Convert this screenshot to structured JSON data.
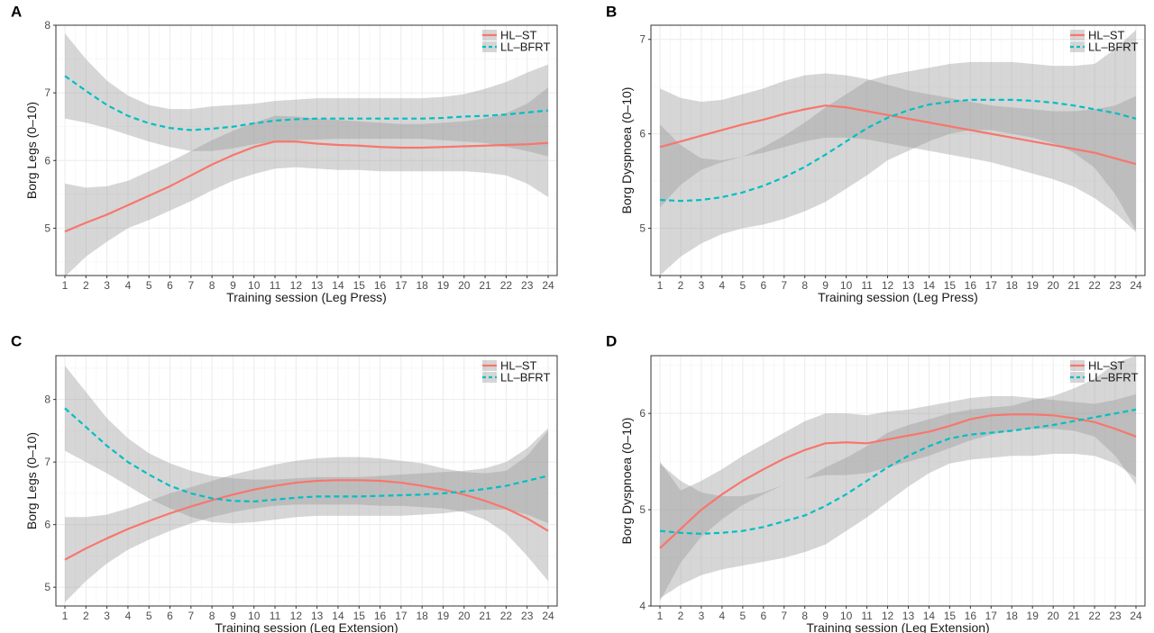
{
  "colors": {
    "hl_st": "#F8766D",
    "ll_bfrt": "#00BFC4",
    "band": "#999999",
    "grid": "#ebebeb",
    "frame": "#333333"
  },
  "chart_data": [
    {
      "panel": "A",
      "type": "line",
      "xlabel": "Training session (Leg Press)",
      "ylabel": "Borg Legs (0–10)",
      "xlim": [
        1,
        24
      ],
      "ylim": [
        4.3,
        8.0
      ],
      "yticks": [
        5,
        6,
        7,
        8
      ],
      "x": [
        1,
        2,
        3,
        4,
        5,
        6,
        7,
        8,
        9,
        10,
        11,
        12,
        13,
        14,
        15,
        16,
        17,
        18,
        19,
        20,
        21,
        22,
        23,
        24
      ],
      "grid": true,
      "legend_position": "top-right",
      "series": [
        {
          "name": "HL–ST",
          "style": "solid",
          "values": [
            4.95,
            5.08,
            5.2,
            5.34,
            5.48,
            5.62,
            5.78,
            5.94,
            6.08,
            6.2,
            6.28,
            6.28,
            6.25,
            6.23,
            6.22,
            6.2,
            6.19,
            6.19,
            6.2,
            6.21,
            6.22,
            6.23,
            6.24,
            6.26
          ],
          "lower": [
            4.28,
            4.58,
            4.8,
            5.0,
            5.12,
            5.26,
            5.4,
            5.56,
            5.7,
            5.8,
            5.88,
            5.9,
            5.88,
            5.86,
            5.86,
            5.84,
            5.84,
            5.84,
            5.84,
            5.84,
            5.82,
            5.78,
            5.66,
            5.46
          ],
          "upper": [
            5.66,
            5.6,
            5.62,
            5.7,
            5.84,
            5.98,
            6.14,
            6.3,
            6.44,
            6.56,
            6.66,
            6.65,
            6.62,
            6.6,
            6.58,
            6.56,
            6.54,
            6.54,
            6.56,
            6.58,
            6.62,
            6.7,
            6.84,
            7.08
          ]
        },
        {
          "name": "LL–BFRT",
          "style": "dashed",
          "values": [
            7.25,
            7.03,
            6.82,
            6.66,
            6.55,
            6.48,
            6.45,
            6.47,
            6.5,
            6.55,
            6.59,
            6.61,
            6.62,
            6.62,
            6.62,
            6.62,
            6.62,
            6.62,
            6.63,
            6.65,
            6.66,
            6.68,
            6.71,
            6.74
          ],
          "lower": [
            6.62,
            6.56,
            6.48,
            6.38,
            6.28,
            6.2,
            6.14,
            6.14,
            6.18,
            6.24,
            6.28,
            6.3,
            6.31,
            6.32,
            6.32,
            6.32,
            6.32,
            6.32,
            6.3,
            6.28,
            6.26,
            6.2,
            6.14,
            6.06
          ],
          "upper": [
            7.88,
            7.5,
            7.18,
            6.96,
            6.82,
            6.76,
            6.76,
            6.8,
            6.82,
            6.84,
            6.88,
            6.9,
            6.92,
            6.92,
            6.92,
            6.92,
            6.92,
            6.92,
            6.94,
            6.98,
            7.06,
            7.16,
            7.3,
            7.42
          ]
        }
      ]
    },
    {
      "panel": "B",
      "type": "line",
      "xlabel": "Training session (Leg Press)",
      "ylabel": "Borg Dyspnoea (0–10)",
      "xlim": [
        1,
        24
      ],
      "ylim": [
        4.5,
        7.15
      ],
      "yticks": [
        5,
        6,
        7
      ],
      "x": [
        1,
        2,
        3,
        4,
        5,
        6,
        7,
        8,
        9,
        10,
        11,
        12,
        13,
        14,
        15,
        16,
        17,
        18,
        19,
        20,
        21,
        22,
        23,
        24
      ],
      "grid": true,
      "legend_position": "top-right",
      "series": [
        {
          "name": "HL–ST",
          "style": "solid",
          "values": [
            5.86,
            5.92,
            5.98,
            6.04,
            6.1,
            6.15,
            6.21,
            6.26,
            6.3,
            6.28,
            6.24,
            6.2,
            6.16,
            6.12,
            6.08,
            6.04,
            6.0,
            5.96,
            5.92,
            5.88,
            5.84,
            5.8,
            5.74,
            5.68
          ],
          "lower": [
            5.22,
            5.46,
            5.62,
            5.7,
            5.76,
            5.8,
            5.86,
            5.92,
            5.96,
            5.96,
            5.94,
            5.9,
            5.86,
            5.82,
            5.78,
            5.74,
            5.7,
            5.64,
            5.58,
            5.52,
            5.44,
            5.32,
            5.16,
            4.96
          ],
          "upper": [
            6.48,
            6.38,
            6.34,
            6.36,
            6.42,
            6.48,
            6.56,
            6.62,
            6.64,
            6.62,
            6.58,
            6.52,
            6.46,
            6.42,
            6.38,
            6.34,
            6.3,
            6.28,
            6.26,
            6.24,
            6.24,
            6.26,
            6.3,
            6.4
          ]
        },
        {
          "name": "LL–BFRT",
          "style": "dashed",
          "values": [
            5.3,
            5.29,
            5.3,
            5.33,
            5.38,
            5.45,
            5.54,
            5.65,
            5.78,
            5.92,
            6.06,
            6.17,
            6.25,
            6.31,
            6.34,
            6.36,
            6.36,
            6.36,
            6.35,
            6.33,
            6.3,
            6.26,
            6.22,
            6.16
          ],
          "lower": [
            4.5,
            4.7,
            4.84,
            4.94,
            5.0,
            5.04,
            5.1,
            5.18,
            5.28,
            5.42,
            5.56,
            5.72,
            5.82,
            5.92,
            6.0,
            6.04,
            6.04,
            6.0,
            5.96,
            5.9,
            5.8,
            5.64,
            5.36,
            4.98
          ],
          "upper": [
            6.1,
            5.88,
            5.74,
            5.72,
            5.76,
            5.86,
            5.98,
            6.12,
            6.28,
            6.42,
            6.56,
            6.62,
            6.66,
            6.7,
            6.74,
            6.76,
            6.76,
            6.76,
            6.74,
            6.72,
            6.72,
            6.74,
            6.9,
            7.1
          ]
        }
      ]
    },
    {
      "panel": "C",
      "type": "line",
      "xlabel": "Training session (Leg Extension)",
      "ylabel": "Borg Legs (0–10)",
      "xlim": [
        1,
        24
      ],
      "ylim": [
        4.7,
        8.7
      ],
      "yticks": [
        5,
        6,
        7,
        8
      ],
      "x": [
        1,
        2,
        3,
        4,
        5,
        6,
        7,
        8,
        9,
        10,
        11,
        12,
        13,
        14,
        15,
        16,
        17,
        18,
        19,
        20,
        21,
        22,
        23,
        24
      ],
      "grid": true,
      "legend_position": "top-right",
      "series": [
        {
          "name": "HL–ST",
          "style": "solid",
          "values": [
            5.44,
            5.62,
            5.78,
            5.93,
            6.06,
            6.18,
            6.29,
            6.39,
            6.48,
            6.56,
            6.62,
            6.67,
            6.7,
            6.71,
            6.71,
            6.7,
            6.67,
            6.62,
            6.56,
            6.48,
            6.38,
            6.26,
            6.1,
            5.9
          ],
          "lower": [
            4.76,
            5.1,
            5.38,
            5.6,
            5.76,
            5.9,
            6.02,
            6.12,
            6.2,
            6.26,
            6.3,
            6.32,
            6.32,
            6.32,
            6.32,
            6.3,
            6.3,
            6.28,
            6.26,
            6.2,
            6.08,
            5.86,
            5.5,
            5.1
          ],
          "upper": [
            6.12,
            6.12,
            6.16,
            6.26,
            6.38,
            6.5,
            6.6,
            6.7,
            6.8,
            6.88,
            6.96,
            7.02,
            7.06,
            7.08,
            7.08,
            7.06,
            7.02,
            6.98,
            6.9,
            6.84,
            6.82,
            6.86,
            7.1,
            7.5
          ]
        },
        {
          "name": "LL–BFRT",
          "style": "dashed",
          "values": [
            7.86,
            7.56,
            7.26,
            7.0,
            6.8,
            6.62,
            6.5,
            6.42,
            6.38,
            6.37,
            6.4,
            6.43,
            6.45,
            6.45,
            6.45,
            6.46,
            6.47,
            6.48,
            6.5,
            6.53,
            6.57,
            6.62,
            6.7,
            6.78
          ],
          "lower": [
            7.18,
            7.0,
            6.82,
            6.62,
            6.42,
            6.26,
            6.12,
            6.04,
            6.02,
            6.04,
            6.08,
            6.12,
            6.14,
            6.14,
            6.14,
            6.14,
            6.14,
            6.16,
            6.18,
            6.22,
            6.24,
            6.24,
            6.16,
            6.02
          ],
          "upper": [
            8.54,
            8.12,
            7.7,
            7.38,
            7.14,
            6.98,
            6.86,
            6.78,
            6.74,
            6.72,
            6.72,
            6.74,
            6.76,
            6.76,
            6.76,
            6.78,
            6.8,
            6.82,
            6.84,
            6.86,
            6.9,
            7.0,
            7.22,
            7.54
          ]
        }
      ]
    },
    {
      "panel": "D",
      "type": "line",
      "xlabel": "Training session (Leg Extension)",
      "ylabel": "Borg Dyspnoea (0–10)",
      "xlim": [
        1,
        24
      ],
      "ylim": [
        4.0,
        6.6
      ],
      "yticks": [
        4,
        5,
        6
      ],
      "x": [
        1,
        2,
        3,
        4,
        5,
        6,
        7,
        8,
        9,
        10,
        11,
        12,
        13,
        14,
        15,
        16,
        17,
        18,
        19,
        20,
        21,
        22,
        23,
        24
      ],
      "grid": true,
      "legend_position": "top-right",
      "series": [
        {
          "name": "HL–ST",
          "style": "solid",
          "values": [
            4.6,
            4.8,
            5.0,
            5.16,
            5.3,
            5.42,
            5.53,
            5.62,
            5.69,
            5.7,
            5.69,
            5.73,
            5.77,
            5.81,
            5.87,
            5.94,
            5.98,
            5.99,
            5.99,
            5.98,
            5.95,
            5.91,
            5.84,
            5.76
          ],
          "lower": [
            4.05,
            4.45,
            4.72,
            4.9,
            5.05,
            5.16,
            5.26,
            5.32,
            5.36,
            5.36,
            5.38,
            5.44,
            5.5,
            5.56,
            5.64,
            5.72,
            5.78,
            5.82,
            5.84,
            5.84,
            5.82,
            5.76,
            5.56,
            5.26
          ],
          "upper": [
            5.5,
            5.2,
            5.3,
            5.42,
            5.56,
            5.68,
            5.8,
            5.92,
            6.0,
            6.0,
            5.98,
            6.02,
            6.04,
            6.08,
            6.12,
            6.16,
            6.18,
            6.18,
            6.16,
            6.14,
            6.12,
            6.1,
            6.14,
            6.2
          ]
        },
        {
          "name": "LL–BFRT",
          "style": "dashed",
          "values": [
            4.78,
            4.76,
            4.75,
            4.76,
            4.78,
            4.82,
            4.88,
            4.94,
            5.04,
            5.16,
            5.3,
            5.44,
            5.56,
            5.66,
            5.74,
            5.78,
            5.8,
            5.82,
            5.85,
            5.88,
            5.92,
            5.96,
            6.0,
            6.04
          ],
          "lower": [
            4.08,
            4.22,
            4.32,
            4.38,
            4.42,
            4.46,
            4.5,
            4.56,
            4.64,
            4.78,
            4.92,
            5.08,
            5.24,
            5.38,
            5.48,
            5.52,
            5.54,
            5.56,
            5.56,
            5.58,
            5.58,
            5.56,
            5.48,
            5.34
          ],
          "upper": [
            5.48,
            5.3,
            5.18,
            5.14,
            5.14,
            5.18,
            5.26,
            5.32,
            5.44,
            5.54,
            5.66,
            5.8,
            5.88,
            5.94,
            6.0,
            6.04,
            6.06,
            6.08,
            6.14,
            6.18,
            6.26,
            6.36,
            6.52,
            6.6
          ]
        }
      ]
    }
  ]
}
